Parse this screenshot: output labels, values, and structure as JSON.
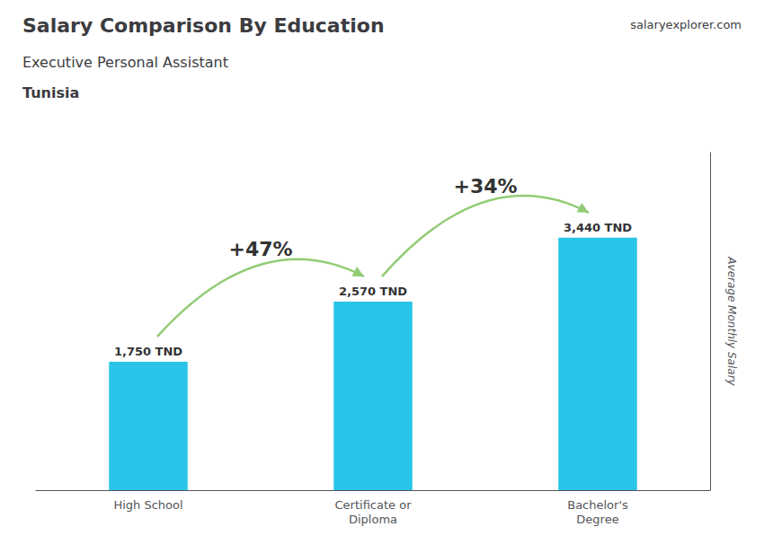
{
  "chart_data": {
    "type": "bar",
    "title": "Salary Comparison By Education",
    "subtitle": "Executive Personal Assistant",
    "ylabel": "Average Monthly Salary",
    "categories": [
      "High School",
      "Certificate or\nDiploma",
      "Bachelor's\nDegree"
    ],
    "values": [
      1750,
      2570,
      3440
    ],
    "value_labels": [
      "1,750 TND",
      "2,570 TND",
      "3,440 TND"
    ],
    "data_labels": true,
    "color": "#29c4e8",
    "ylim": [
      0,
      4600
    ],
    "grid": false,
    "tick_labels": "x",
    "annotations": [
      {
        "text": "Tunisia"
      },
      {
        "text": "salaryexplorer.com"
      },
      {
        "text": "+47%",
        "from": "High School",
        "to": "Certificate or\nDiploma"
      },
      {
        "text": "+34%",
        "from": "Certificate or\nDiploma",
        "to": "Bachelor's\nDegree"
      }
    ]
  }
}
